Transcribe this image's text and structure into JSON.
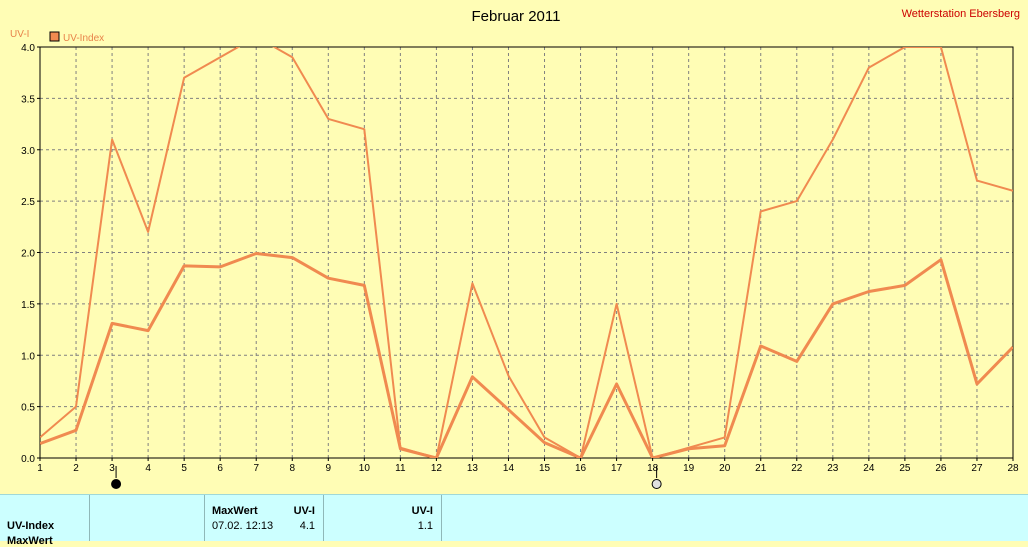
{
  "header": {
    "title": "Februar 2011",
    "station": "Wetterstation Ebersberg",
    "axis_unit": "UV-I",
    "legend_label": "UV-Index"
  },
  "colors": {
    "background": "#fffdb5",
    "line": "#f08a50",
    "grid": "#808080",
    "panel": "#ccffff",
    "station_text": "#cc0000"
  },
  "chart_data": {
    "type": "line",
    "title": "Februar 2011",
    "ylabel": "UV-I",
    "x": [
      1,
      2,
      3,
      4,
      5,
      6,
      7,
      8,
      9,
      10,
      11,
      12,
      13,
      14,
      15,
      16,
      17,
      18,
      19,
      20,
      21,
      22,
      23,
      24,
      25,
      26,
      27,
      28
    ],
    "xlim": [
      1,
      28
    ],
    "ylim": [
      0,
      4
    ],
    "y_ticks": [
      "0.0",
      "0.5",
      "1.0",
      "1.5",
      "2.0",
      "2.5",
      "3.0",
      "3.5",
      "4.0"
    ],
    "grid": true,
    "legend_position": "top-left",
    "series": [
      {
        "name": "UV-Index",
        "role": "max",
        "values": [
          0.2,
          0.5,
          3.1,
          2.2,
          3.7,
          3.9,
          4.1,
          3.9,
          3.3,
          3.2,
          0.1,
          0.0,
          1.7,
          0.8,
          0.2,
          0.0,
          1.5,
          0.0,
          0.1,
          0.2,
          2.4,
          2.5,
          3.1,
          3.8,
          4.0,
          4.0,
          2.7,
          2.6
        ]
      },
      {
        "role": "mean",
        "values": [
          0.14,
          0.27,
          1.31,
          1.24,
          1.87,
          1.86,
          1.99,
          1.95,
          1.75,
          1.68,
          0.09,
          0.0,
          0.79,
          0.47,
          0.15,
          0.0,
          0.72,
          0.0,
          0.09,
          0.12,
          1.09,
          0.94,
          1.5,
          1.62,
          1.68,
          1.93,
          0.72,
          1.08
        ]
      }
    ],
    "moon_phases": [
      {
        "day": 3,
        "phase": "new-moon"
      },
      {
        "day": 18,
        "phase": "full-moon"
      }
    ]
  },
  "table": {
    "row1_label": "UV-Index",
    "row2_label_partial": "MaxWert",
    "col_maxwert_header": "MaxWert",
    "col_maxwert_unit": "UV-I",
    "max_time": "07.02.  12:13",
    "max_value": "4.1",
    "col2_unit": "UV-I",
    "col2_value": "1.1"
  }
}
